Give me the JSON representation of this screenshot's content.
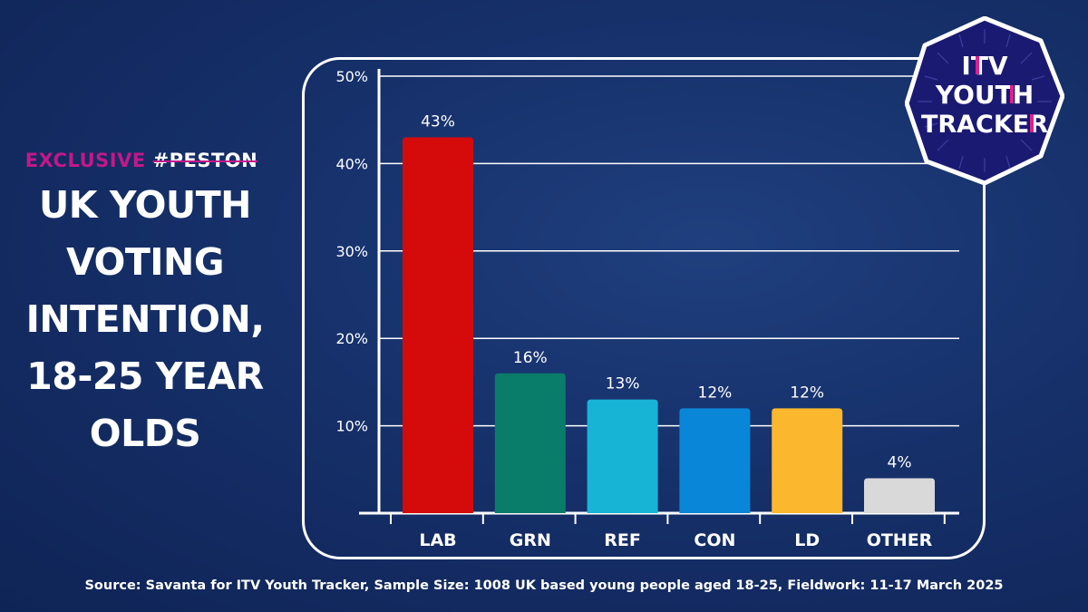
{
  "left": {
    "exclusive": "EXCLUSIVE",
    "hashtag": "#PESTON",
    "title_lines": [
      "UK YOUTH",
      "VOTING",
      "INTENTION,",
      "18-25 YEAR",
      "OLDS"
    ]
  },
  "logo": {
    "line1": "ITV",
    "line2": "YOUTH",
    "line3": "TRACKER"
  },
  "source": "Source: Savanta for ITV Youth Tracker, Sample Size: 1008 UK based young people aged 18-25,  Fieldwork: 11-17 March 2025",
  "chart_data": {
    "type": "bar",
    "title": "UK YOUTH VOTING INTENTION, 18-25 YEAR OLDS",
    "xlabel": "",
    "ylabel": "",
    "ylim": [
      0,
      50
    ],
    "yticks": [
      10,
      20,
      30,
      40,
      50
    ],
    "ytick_labels": [
      "10%",
      "20%",
      "30%",
      "40%",
      "50%"
    ],
    "grid": true,
    "categories": [
      "LAB",
      "GRN",
      "REF",
      "CON",
      "LD",
      "OTHER"
    ],
    "values": [
      43,
      16,
      13,
      12,
      12,
      4
    ],
    "data_labels": [
      "43%",
      "16%",
      "13%",
      "12%",
      "12%",
      "4%"
    ],
    "colors": [
      "#d50b0b",
      "#0a7c6a",
      "#18b4d6",
      "#0a86d8",
      "#fbb72e",
      "#d9d9d9"
    ]
  }
}
